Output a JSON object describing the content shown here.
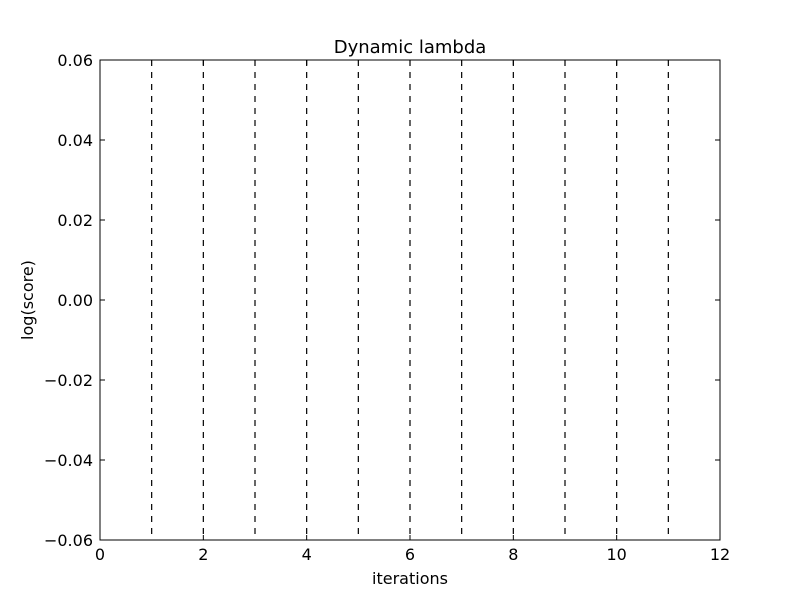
{
  "chart_data": {
    "type": "line",
    "title": "Dynamic lambda",
    "xlabel": "iterations",
    "ylabel": "log(score)",
    "xlim": [
      0,
      12
    ],
    "ylim": [
      -0.06,
      0.06
    ],
    "x_ticks": [
      0,
      2,
      4,
      6,
      8,
      10,
      12
    ],
    "x_tick_labels": [
      "0",
      "2",
      "4",
      "6",
      "8",
      "10",
      "12"
    ],
    "y_ticks": [
      0.06,
      0.04,
      0.02,
      0.0,
      -0.02,
      -0.04,
      -0.06
    ],
    "y_tick_labels": [
      "0.06",
      "0.04",
      "0.02",
      "0.00",
      "−0.02",
      "−0.04",
      "−0.06"
    ],
    "vertical_dashed_lines_x": [
      1,
      2,
      3,
      4,
      5,
      6,
      7,
      8,
      9,
      10,
      11
    ],
    "series": [],
    "grid": false,
    "line_color": "#000000"
  }
}
